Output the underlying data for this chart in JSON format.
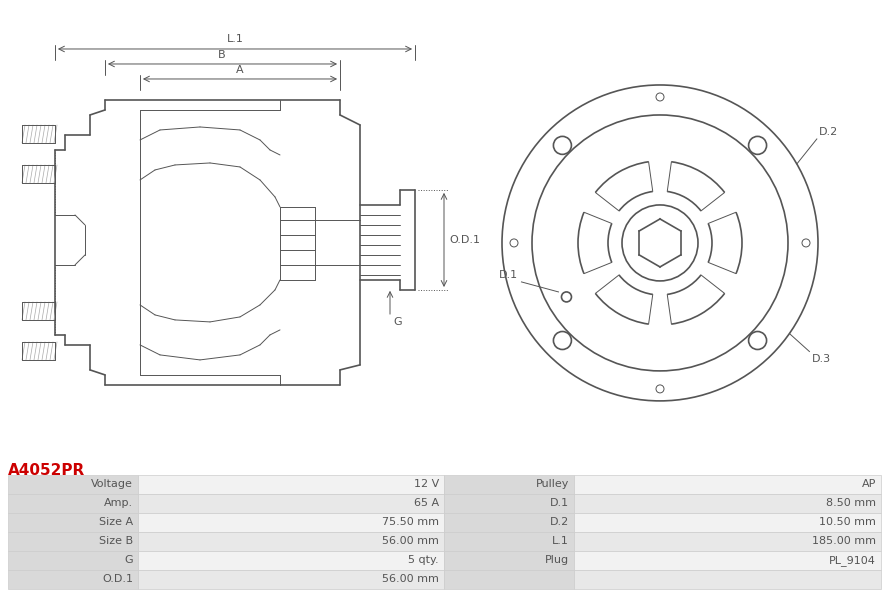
{
  "title": "A4052PR",
  "title_color": "#cc0000",
  "bg_color": "#ffffff",
  "table_data": {
    "left_labels": [
      "Voltage",
      "Amp.",
      "Size A",
      "Size B",
      "G",
      "O.D.1"
    ],
    "left_values": [
      "12 V",
      "65 A",
      "75.50 mm",
      "56.00 mm",
      "5 qty.",
      "56.00 mm"
    ],
    "right_labels": [
      "Pulley",
      "D.1",
      "D.2",
      "L.1",
      "Plug",
      ""
    ],
    "right_values": [
      "AP",
      "8.50 mm",
      "10.50 mm",
      "185.00 mm",
      "PL_9104",
      ""
    ]
  },
  "table_header_bg": "#d9d9d9",
  "table_row_bg_odd": "#f2f2f2",
  "table_row_bg_even": "#e8e8e8",
  "line_color": "#555555",
  "dim_color": "#555555",
  "label_color": "#555555"
}
